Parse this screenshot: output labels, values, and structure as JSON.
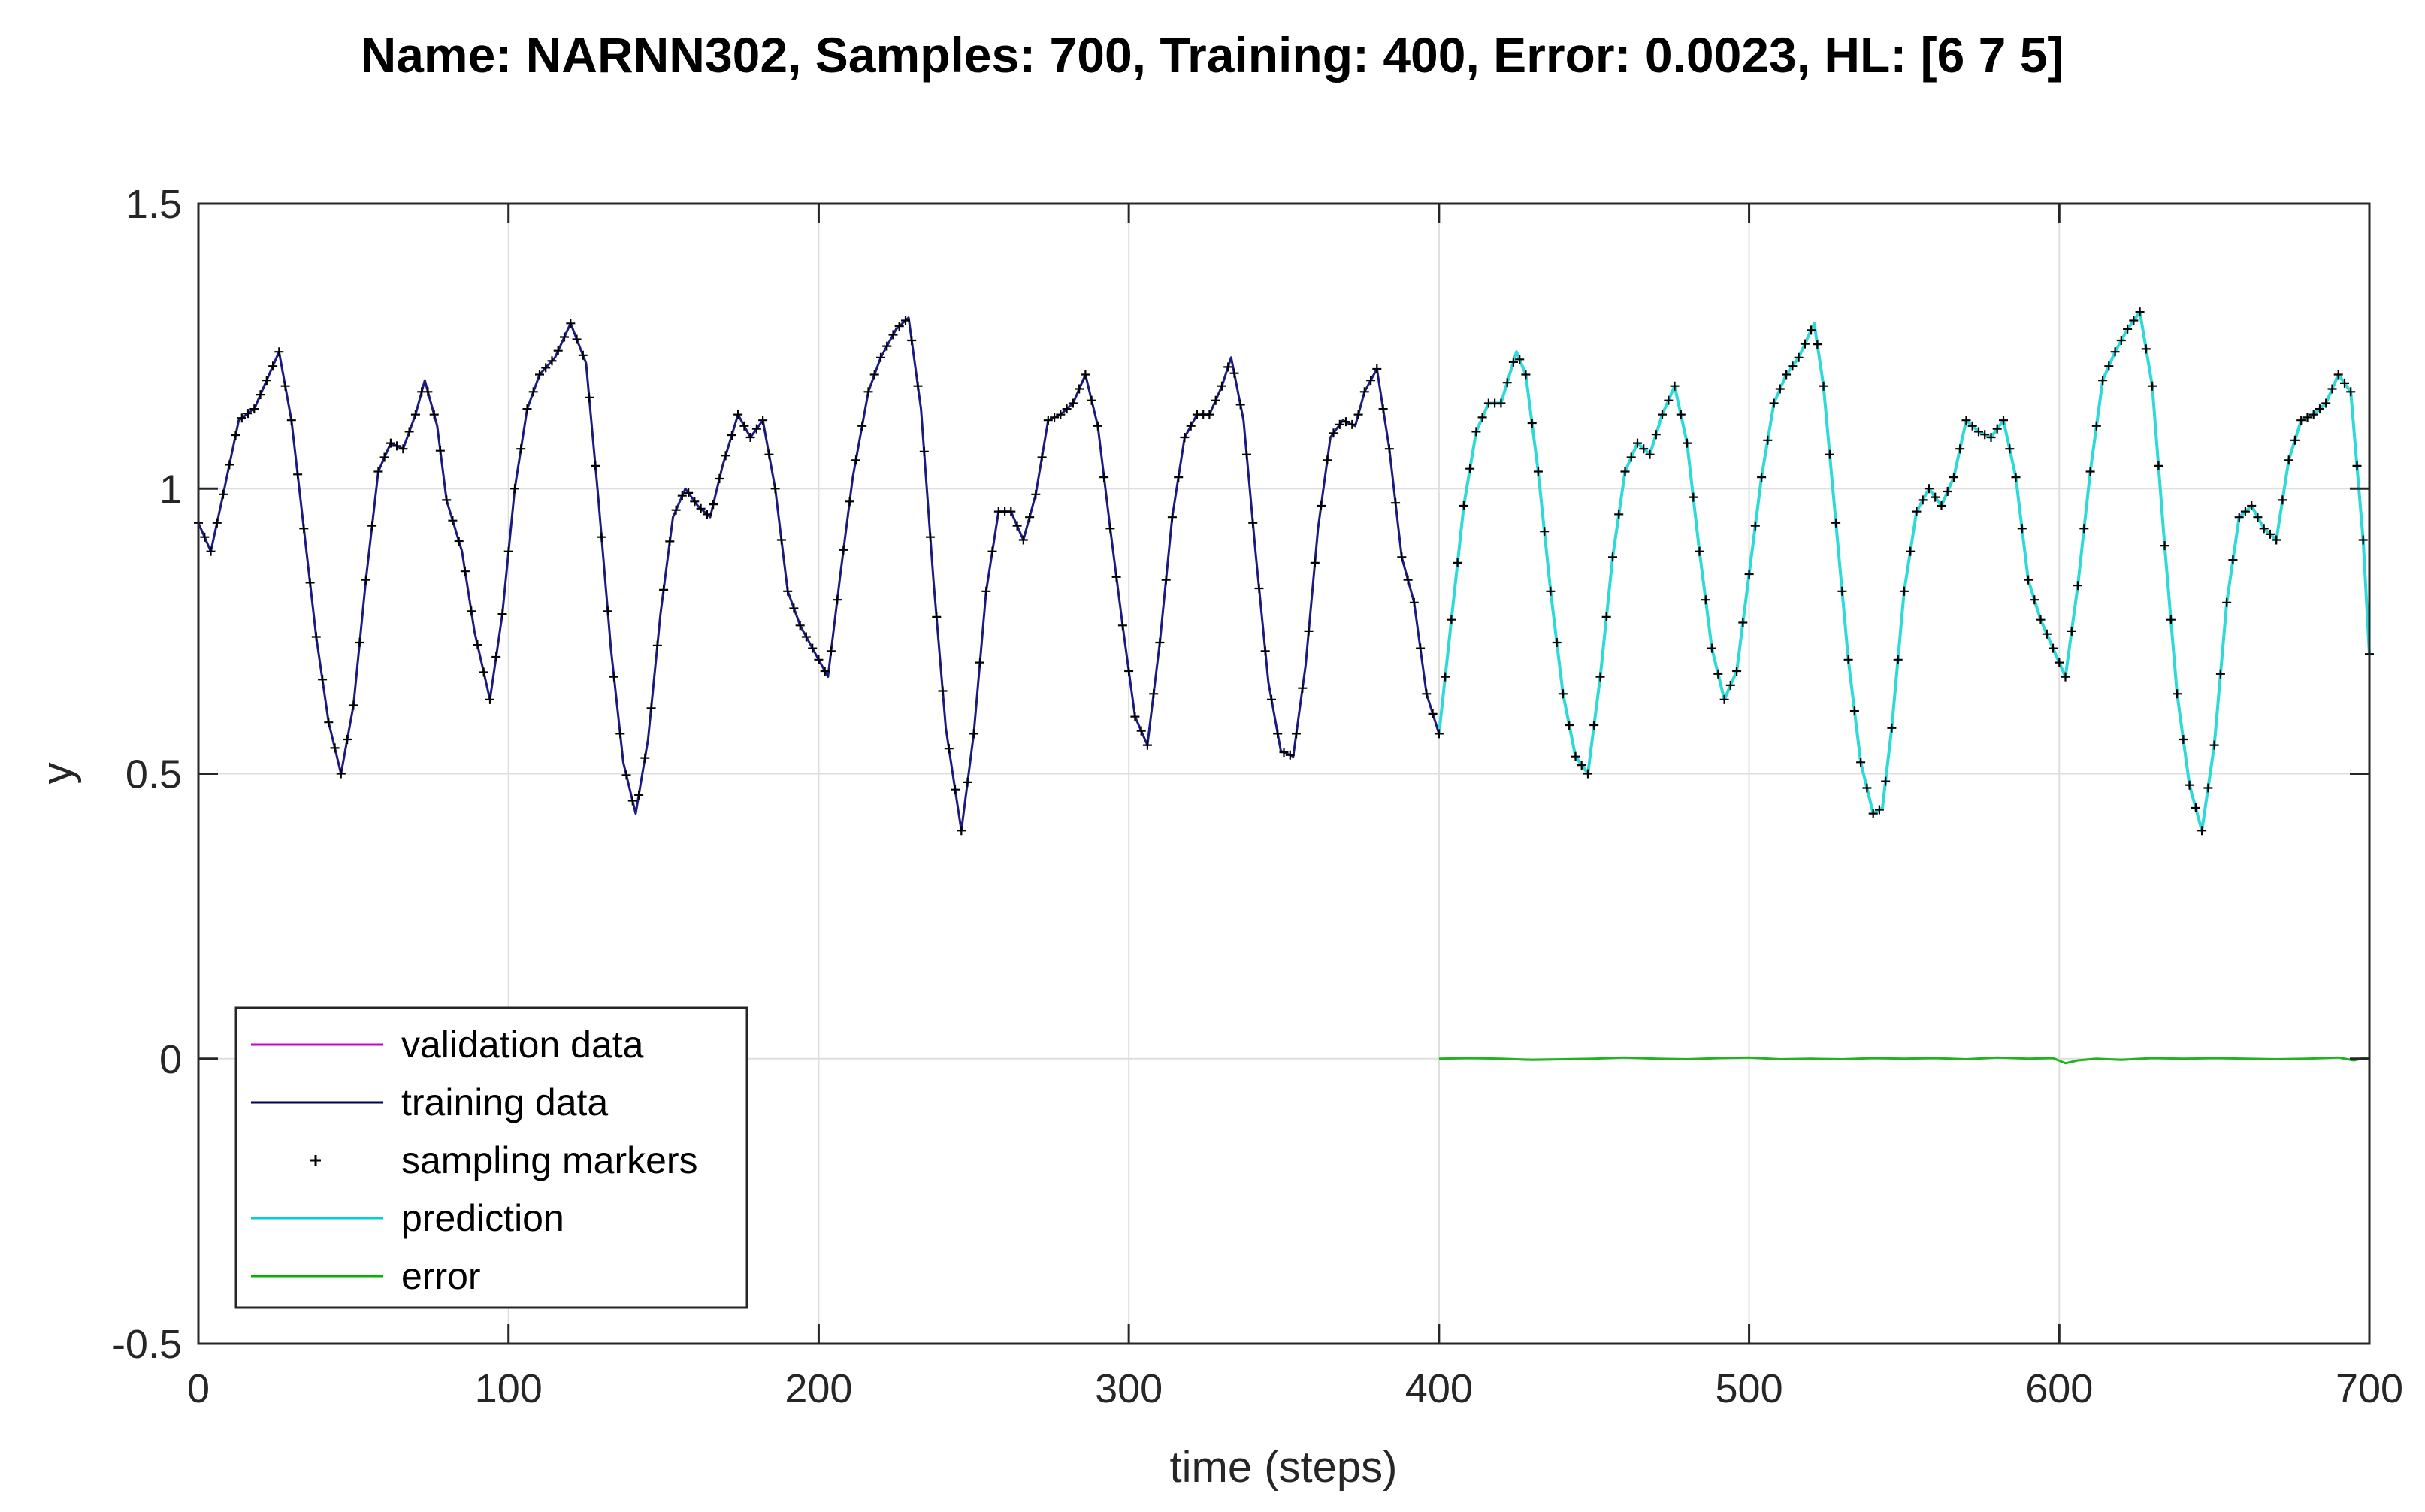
{
  "chart_data": {
    "type": "line",
    "title": "Name: NARNN302, Samples: 700, Training: 400, Error: 0.0023, HL: [6 7 5]",
    "xlabel": "time (steps)",
    "ylabel": "y",
    "xlim": [
      0,
      700
    ],
    "ylim": [
      -0.5,
      1.5
    ],
    "xticks": [
      0,
      100,
      200,
      300,
      400,
      500,
      600,
      700
    ],
    "xtick_labels": [
      "0",
      "100",
      "200",
      "300",
      "400",
      "500",
      "600",
      "700"
    ],
    "yticks": [
      -0.5,
      0,
      0.5,
      1,
      1.5
    ],
    "ytick_labels": [
      "-0.5",
      "0",
      "0.5",
      "1",
      "1.5"
    ],
    "grid": true,
    "legend_location": "bottom-left",
    "legend": [
      {
        "name": "validation data",
        "color": "#cc00cc",
        "style": "line"
      },
      {
        "name": "training data",
        "color": "#00005a",
        "style": "line"
      },
      {
        "name": "sampling markers",
        "color": "#000000",
        "style": "marker"
      },
      {
        "name": "prediction",
        "color": "#00d2d2",
        "style": "line"
      },
      {
        "name": "error",
        "color": "#00b400",
        "style": "line"
      }
    ],
    "colors": {
      "training": "#1a1a80",
      "prediction": "#2ed9d9",
      "error": "#1fb51f",
      "markers": "#000000"
    },
    "series": [
      {
        "name": "training data",
        "x": [
          0,
          4,
          8,
          13,
          18,
          22,
          26,
          30,
          34,
          38,
          42,
          46,
          50,
          54,
          58,
          62,
          66,
          70,
          73,
          77,
          80,
          85,
          89,
          94,
          98,
          102,
          106,
          110,
          115,
          120,
          125,
          129,
          133,
          137,
          141,
          145,
          149,
          153,
          157,
          161,
          165,
          169,
          174,
          178,
          182,
          186,
          190,
          194,
          199,
          203,
          207,
          211,
          216,
          220,
          225,
          229,
          233,
          237,
          241,
          246,
          250,
          254,
          258,
          262,
          266,
          270,
          274,
          278,
          282,
          286,
          290,
          294,
          298,
          302,
          306,
          310,
          314,
          318,
          322,
          326,
          330,
          333,
          337,
          341,
          345,
          349,
          353,
          357,
          361,
          365,
          369,
          373,
          376,
          380,
          384,
          388,
          392,
          396,
          400
        ],
        "y": [
          0.94,
          0.89,
          0.99,
          1.12,
          1.14,
          1.19,
          1.24,
          1.12,
          0.93,
          0.74,
          0.59,
          0.5,
          0.62,
          0.84,
          1.03,
          1.08,
          1.07,
          1.13,
          1.19,
          1.11,
          0.98,
          0.89,
          0.75,
          0.63,
          0.78,
          1.0,
          1.14,
          1.2,
          1.23,
          1.29,
          1.22,
          0.98,
          0.72,
          0.52,
          0.43,
          0.56,
          0.78,
          0.95,
          1.0,
          0.97,
          0.95,
          1.04,
          1.13,
          1.09,
          1.12,
          1.0,
          0.82,
          0.76,
          0.71,
          0.67,
          0.85,
          1.02,
          1.17,
          1.23,
          1.28,
          1.3,
          1.14,
          0.84,
          0.58,
          0.4,
          0.57,
          0.82,
          0.96,
          0.96,
          0.91,
          0.99,
          1.12,
          1.13,
          1.15,
          1.2,
          1.11,
          0.93,
          0.76,
          0.6,
          0.55,
          0.73,
          0.95,
          1.09,
          1.13,
          1.13,
          1.18,
          1.23,
          1.12,
          0.88,
          0.66,
          0.54,
          0.53,
          0.69,
          0.93,
          1.09,
          1.12,
          1.11,
          1.17,
          1.21,
          1.07,
          0.88,
          0.8,
          0.64,
          0.57
        ]
      },
      {
        "name": "prediction",
        "x": [
          400,
          404,
          408,
          412,
          416,
          420,
          425,
          428,
          432,
          436,
          440,
          444,
          448,
          452,
          456,
          460,
          464,
          468,
          472,
          476,
          480,
          484,
          488,
          492,
          496,
          500,
          504,
          508,
          512,
          516,
          521,
          524,
          528,
          532,
          536,
          540,
          543,
          546,
          550,
          554,
          558,
          562,
          566,
          570,
          574,
          578,
          582,
          586,
          590,
          594,
          598,
          602,
          606,
          610,
          614,
          618,
          622,
          626,
          630,
          634,
          638,
          642,
          646,
          650,
          654,
          658,
          662,
          666,
          670,
          674,
          678,
          682,
          686,
          690,
          694,
          698,
          700
        ],
        "y": [
          0.57,
          0.77,
          0.97,
          1.1,
          1.15,
          1.15,
          1.24,
          1.2,
          1.03,
          0.82,
          0.64,
          0.53,
          0.5,
          0.67,
          0.88,
          1.03,
          1.08,
          1.06,
          1.13,
          1.18,
          1.08,
          0.89,
          0.72,
          0.63,
          0.68,
          0.85,
          1.02,
          1.15,
          1.2,
          1.23,
          1.29,
          1.18,
          0.94,
          0.7,
          0.52,
          0.43,
          0.44,
          0.58,
          0.82,
          0.96,
          1.0,
          0.97,
          1.02,
          1.12,
          1.1,
          1.09,
          1.12,
          1.02,
          0.84,
          0.77,
          0.72,
          0.67,
          0.83,
          1.03,
          1.19,
          1.24,
          1.28,
          1.31,
          1.18,
          0.9,
          0.64,
          0.48,
          0.4,
          0.55,
          0.8,
          0.95,
          0.97,
          0.93,
          0.91,
          1.05,
          1.12,
          1.13,
          1.15,
          1.2,
          1.17,
          0.91,
          0.71
        ]
      },
      {
        "name": "error",
        "x": [
          400,
          410,
          420,
          430,
          440,
          450,
          460,
          470,
          480,
          490,
          500,
          510,
          520,
          530,
          540,
          550,
          560,
          570,
          580,
          590,
          598,
          602,
          606,
          612,
          620,
          630,
          640,
          650,
          660,
          670,
          680,
          690,
          695,
          698,
          700
        ],
        "y": [
          0.0,
          0.001,
          0.0,
          -0.002,
          -0.001,
          0.0,
          0.002,
          0.0,
          -0.001,
          0.001,
          0.002,
          -0.001,
          0.0,
          -0.001,
          0.001,
          0.0,
          0.001,
          -0.001,
          0.002,
          0.0,
          0.001,
          -0.008,
          -0.003,
          0.0,
          -0.002,
          0.001,
          0.0,
          0.001,
          0.0,
          -0.001,
          0.0,
          0.002,
          -0.003,
          0.001,
          0.0
        ]
      }
    ]
  }
}
